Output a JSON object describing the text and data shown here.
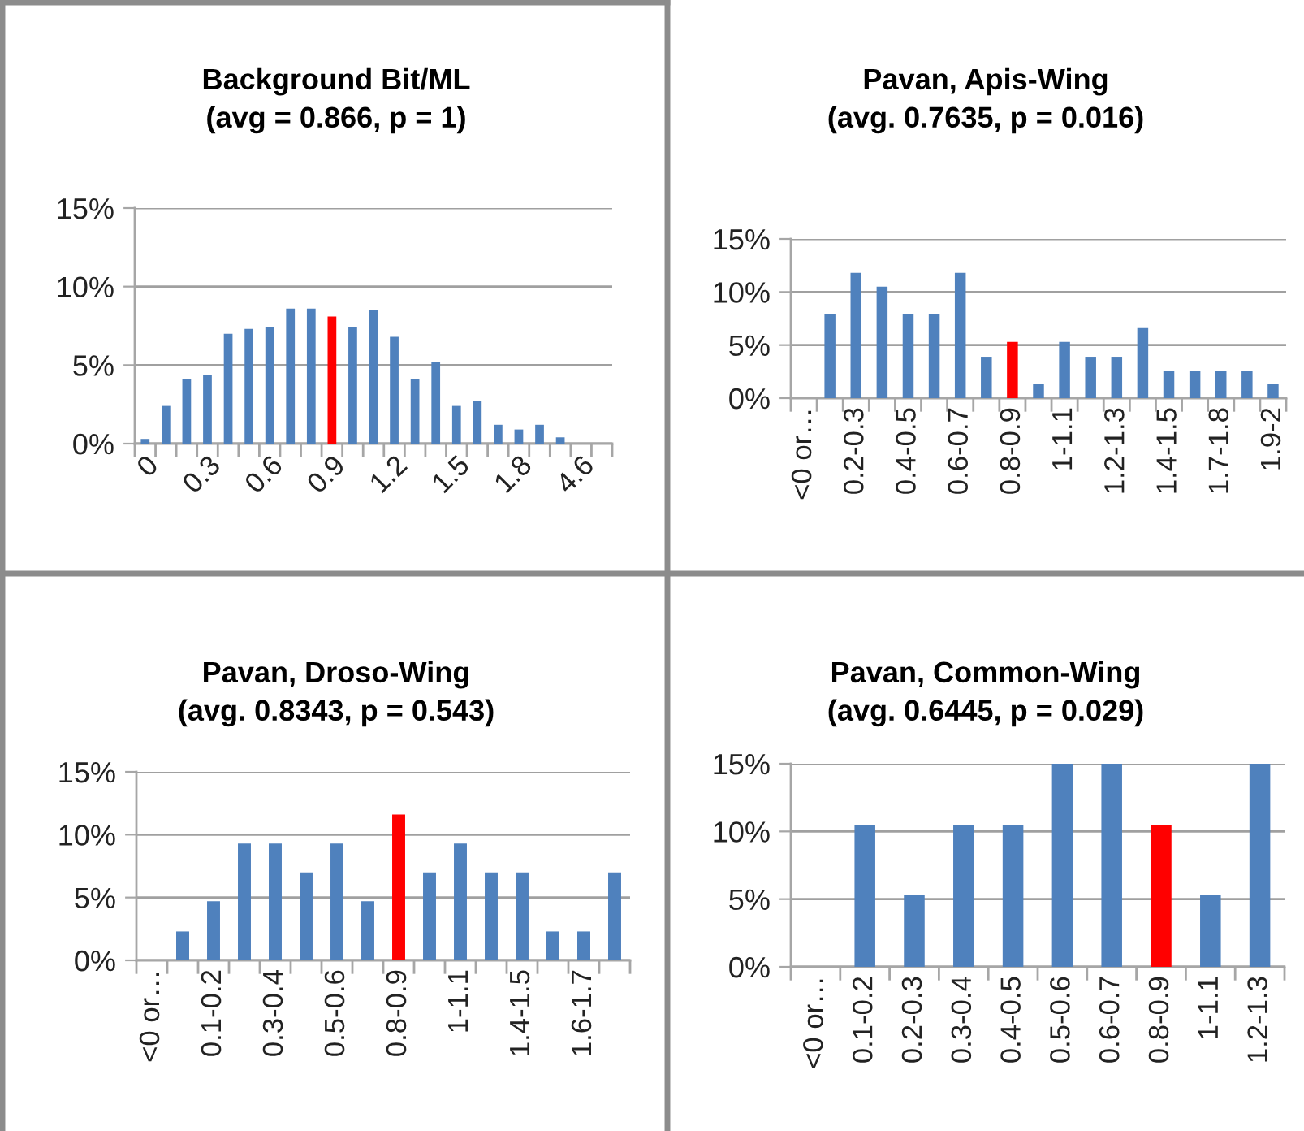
{
  "chart_data": [
    {
      "type": "bar",
      "title": "Background Bit/ML\n(avg = 0.866, p = 1)",
      "categories": [
        "0",
        null,
        null,
        "0.3",
        null,
        null,
        "0.6",
        null,
        null,
        "0.9",
        null,
        null,
        "1.2",
        null,
        null,
        "1.5",
        null,
        null,
        "1.8",
        null,
        null,
        "4.6",
        null
      ],
      "values": [
        0.3,
        2.4,
        4.1,
        4.4,
        7.0,
        7.3,
        7.4,
        8.6,
        8.6,
        8.1,
        7.4,
        8.5,
        6.8,
        4.1,
        5.2,
        2.4,
        2.7,
        1.2,
        0.9,
        1.2,
        0.4,
        0,
        0
      ],
      "colors": [
        "#4f81bd",
        "#4f81bd",
        "#4f81bd",
        "#4f81bd",
        "#4f81bd",
        "#4f81bd",
        "#4f81bd",
        "#4f81bd",
        "#4f81bd",
        "#ff0000",
        "#4f81bd",
        "#4f81bd",
        "#4f81bd",
        "#4f81bd",
        "#4f81bd",
        "#4f81bd",
        "#4f81bd",
        "#4f81bd",
        "#4f81bd",
        "#4f81bd",
        "#4f81bd",
        "#4f81bd",
        "#4f81bd"
      ],
      "ylim": [
        0,
        15
      ],
      "yticks": [
        {
          "value": 0,
          "label": "0%"
        },
        {
          "value": 5,
          "label": "5%"
        },
        {
          "value": 10,
          "label": "10%"
        },
        {
          "value": 15,
          "label": "15%"
        }
      ],
      "grid": "y"
    },
    {
      "type": "bar",
      "title": "Pavan, Apis-Wing\n(avg. 0.7635, p = 0.016)",
      "categories": [
        "<0 or…",
        null,
        "0.2-0.3",
        null,
        "0.4-0.5",
        null,
        "0.6-0.7",
        null,
        "0.8-0.9",
        null,
        "1-1.1",
        null,
        "1.2-1.3",
        null,
        "1.4-1.5",
        null,
        "1.7-1.8",
        null,
        "1.9-2"
      ],
      "values": [
        0,
        7.9,
        11.8,
        10.5,
        7.9,
        7.9,
        11.8,
        3.9,
        5.3,
        1.3,
        5.3,
        3.9,
        3.9,
        6.6,
        2.6,
        2.6,
        2.6,
        2.6,
        1.3
      ],
      "colors": [
        "#4f81bd",
        "#4f81bd",
        "#4f81bd",
        "#4f81bd",
        "#4f81bd",
        "#4f81bd",
        "#4f81bd",
        "#4f81bd",
        "#ff0000",
        "#4f81bd",
        "#4f81bd",
        "#4f81bd",
        "#4f81bd",
        "#4f81bd",
        "#4f81bd",
        "#4f81bd",
        "#4f81bd",
        "#4f81bd",
        "#4f81bd"
      ],
      "ylim": [
        0,
        15
      ],
      "yticks": [
        {
          "value": 0,
          "label": "0%"
        },
        {
          "value": 5,
          "label": "5%"
        },
        {
          "value": 10,
          "label": "10%"
        },
        {
          "value": 15,
          "label": "15%"
        }
      ],
      "grid": "y"
    },
    {
      "type": "bar",
      "title": "Pavan, Droso-Wing\n(avg. 0.8343, p = 0.543)",
      "categories": [
        "<0 or…",
        null,
        "0.1-0.2",
        null,
        "0.3-0.4",
        null,
        "0.5-0.6",
        null,
        "0.8-0.9",
        null,
        "1-1.1",
        null,
        "1.4-1.5",
        null,
        "1.6-1.7",
        null
      ],
      "values": [
        0,
        2.3,
        4.7,
        9.3,
        9.3,
        7.0,
        9.3,
        4.7,
        11.6,
        7.0,
        9.3,
        7.0,
        7.0,
        2.3,
        2.3,
        7.0
      ],
      "colors": [
        "#4f81bd",
        "#4f81bd",
        "#4f81bd",
        "#4f81bd",
        "#4f81bd",
        "#4f81bd",
        "#4f81bd",
        "#4f81bd",
        "#ff0000",
        "#4f81bd",
        "#4f81bd",
        "#4f81bd",
        "#4f81bd",
        "#4f81bd",
        "#4f81bd",
        "#4f81bd"
      ],
      "ylim": [
        0,
        15
      ],
      "yticks": [
        {
          "value": 0,
          "label": "0%"
        },
        {
          "value": 5,
          "label": "5%"
        },
        {
          "value": 10,
          "label": "10%"
        },
        {
          "value": 15,
          "label": "15%"
        }
      ],
      "grid": "y"
    },
    {
      "type": "bar",
      "title": "Pavan, Common-Wing\n(avg. 0.6445, p = 0.029)",
      "categories": [
        "<0 or…",
        "0.1-0.2",
        "0.2-0.3",
        "0.3-0.4",
        "0.4-0.5",
        "0.5-0.6",
        "0.6-0.7",
        "0.8-0.9",
        "1-1.1",
        "1.2-1.3"
      ],
      "values": [
        0,
        10.5,
        5.3,
        10.5,
        10.5,
        15,
        15,
        10.5,
        5.3,
        15
      ],
      "colors": [
        "#4f81bd",
        "#4f81bd",
        "#4f81bd",
        "#4f81bd",
        "#4f81bd",
        "#4f81bd",
        "#4f81bd",
        "#ff0000",
        "#4f81bd",
        "#4f81bd"
      ],
      "ylim": [
        0,
        15
      ],
      "yticks": [
        {
          "value": 0,
          "label": "0%"
        },
        {
          "value": 5,
          "label": "5%"
        },
        {
          "value": 10,
          "label": "10%"
        },
        {
          "value": 15,
          "label": "15%"
        }
      ],
      "grid": "y"
    }
  ]
}
